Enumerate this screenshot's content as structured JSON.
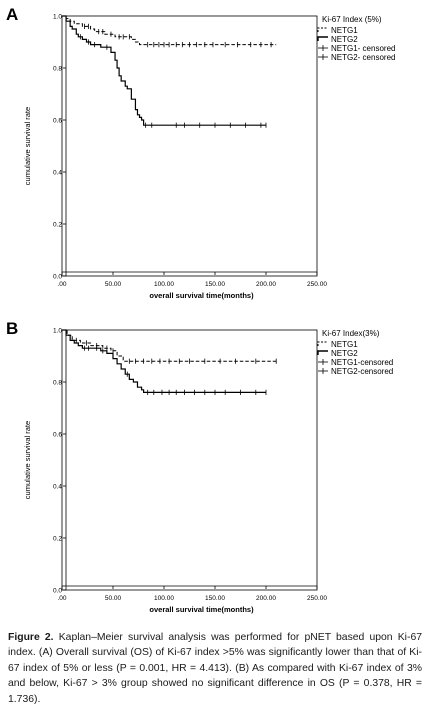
{
  "chart_data": [
    {
      "type": "line",
      "panel": "A",
      "title": "",
      "xlabel": "overall survival time(months)",
      "ylabel": "cumulative survival rate",
      "xlim": [
        0,
        250
      ],
      "ylim": [
        0,
        1.0
      ],
      "x_ticks": [
        ".00",
        "50.00",
        "100.00",
        "150.00",
        "200.00",
        "250.00"
      ],
      "y_ticks": [
        "0.0",
        "0.2",
        "0.4",
        "0.6",
        "0.8",
        "1.0"
      ],
      "grid": false,
      "legend_placement": "top-right outside",
      "legend_title": "Ki-67 Index (5%)",
      "legend_entries": [
        "NETG1",
        "NETG2",
        "NETG1- censored",
        "NETG2- censored"
      ],
      "series": [
        {
          "name": "NETG1",
          "style": "dashed",
          "x": [
            0,
            4,
            8,
            12,
            20,
            28,
            32,
            42,
            52,
            68,
            72,
            76,
            80,
            210
          ],
          "y": [
            1.0,
            0.99,
            0.98,
            0.97,
            0.96,
            0.95,
            0.94,
            0.93,
            0.92,
            0.91,
            0.9,
            0.89,
            0.89,
            0.89
          ],
          "censored_x": [
            22,
            26,
            36,
            40,
            48,
            56,
            60,
            66,
            84,
            90,
            95,
            100,
            105,
            112,
            118,
            125,
            132,
            140,
            148,
            160,
            172,
            185,
            195,
            205
          ]
        },
        {
          "name": "NETG2",
          "style": "solid",
          "x": [
            0,
            4,
            8,
            10,
            14,
            16,
            20,
            24,
            28,
            38,
            48,
            52,
            54,
            56,
            58,
            62,
            64,
            68,
            72,
            74,
            76,
            78,
            80,
            200
          ],
          "y": [
            1.0,
            0.98,
            0.96,
            0.95,
            0.93,
            0.92,
            0.91,
            0.9,
            0.89,
            0.88,
            0.86,
            0.83,
            0.8,
            0.77,
            0.75,
            0.73,
            0.72,
            0.68,
            0.64,
            0.62,
            0.61,
            0.6,
            0.58,
            0.58
          ],
          "censored_x": [
            18,
            26,
            32,
            44,
            82,
            88,
            112,
            120,
            135,
            150,
            165,
            180,
            195,
            200
          ]
        }
      ]
    },
    {
      "type": "line",
      "panel": "B",
      "title": "",
      "xlabel": "overall survival time(months)",
      "ylabel": "cumulative survival rate",
      "xlim": [
        0,
        250
      ],
      "ylim": [
        0,
        1.0
      ],
      "x_ticks": [
        ".00",
        "50.00",
        "100.00",
        "150.00",
        "200.00",
        "250.00"
      ],
      "y_ticks": [
        "0.0",
        "0.2",
        "0.4",
        "0.6",
        "0.8",
        "1.0"
      ],
      "grid": false,
      "legend_placement": "top-right outside",
      "legend_title": "Ki-67 Index(3%)",
      "legend_entries": [
        "NETG1",
        "NETG2",
        "NETG1-censored",
        "NETG2-censored"
      ],
      "series": [
        {
          "name": "NETG1",
          "style": "dashed",
          "x": [
            0,
            5,
            10,
            18,
            28,
            40,
            48,
            54,
            60,
            210
          ],
          "y": [
            1.0,
            0.98,
            0.96,
            0.95,
            0.94,
            0.93,
            0.92,
            0.9,
            0.88,
            0.88
          ],
          "censored_x": [
            14,
            24,
            34,
            44,
            50,
            66,
            72,
            80,
            88,
            96,
            105,
            115,
            125,
            140,
            155,
            170,
            190,
            210
          ]
        },
        {
          "name": "NETG2",
          "style": "solid",
          "x": [
            0,
            4,
            8,
            12,
            16,
            20,
            30,
            38,
            44,
            50,
            54,
            58,
            62,
            66,
            70,
            74,
            78,
            80,
            200
          ],
          "y": [
            1.0,
            0.98,
            0.96,
            0.95,
            0.94,
            0.93,
            0.93,
            0.92,
            0.91,
            0.89,
            0.87,
            0.85,
            0.83,
            0.81,
            0.8,
            0.78,
            0.77,
            0.76,
            0.76
          ],
          "censored_x": [
            22,
            26,
            34,
            40,
            64,
            84,
            90,
            98,
            105,
            112,
            120,
            130,
            140,
            150,
            160,
            175,
            190,
            200
          ]
        }
      ]
    }
  ],
  "caption": {
    "label": "Figure 2.",
    "text": "Kaplan–Meier survival analysis was performed for pNET based upon Ki-67 index. (A) Overall survival (OS) of Ki-67 index >5% was significantly lower than that of Ki-67 index of 5% or less (P = 0.001, HR = 4.413). (B) As compared with Ki-67 index of 3% and below, Ki-67 > 3% group showed no significant difference in OS (P = 0.378, HR = 1.736)."
  }
}
